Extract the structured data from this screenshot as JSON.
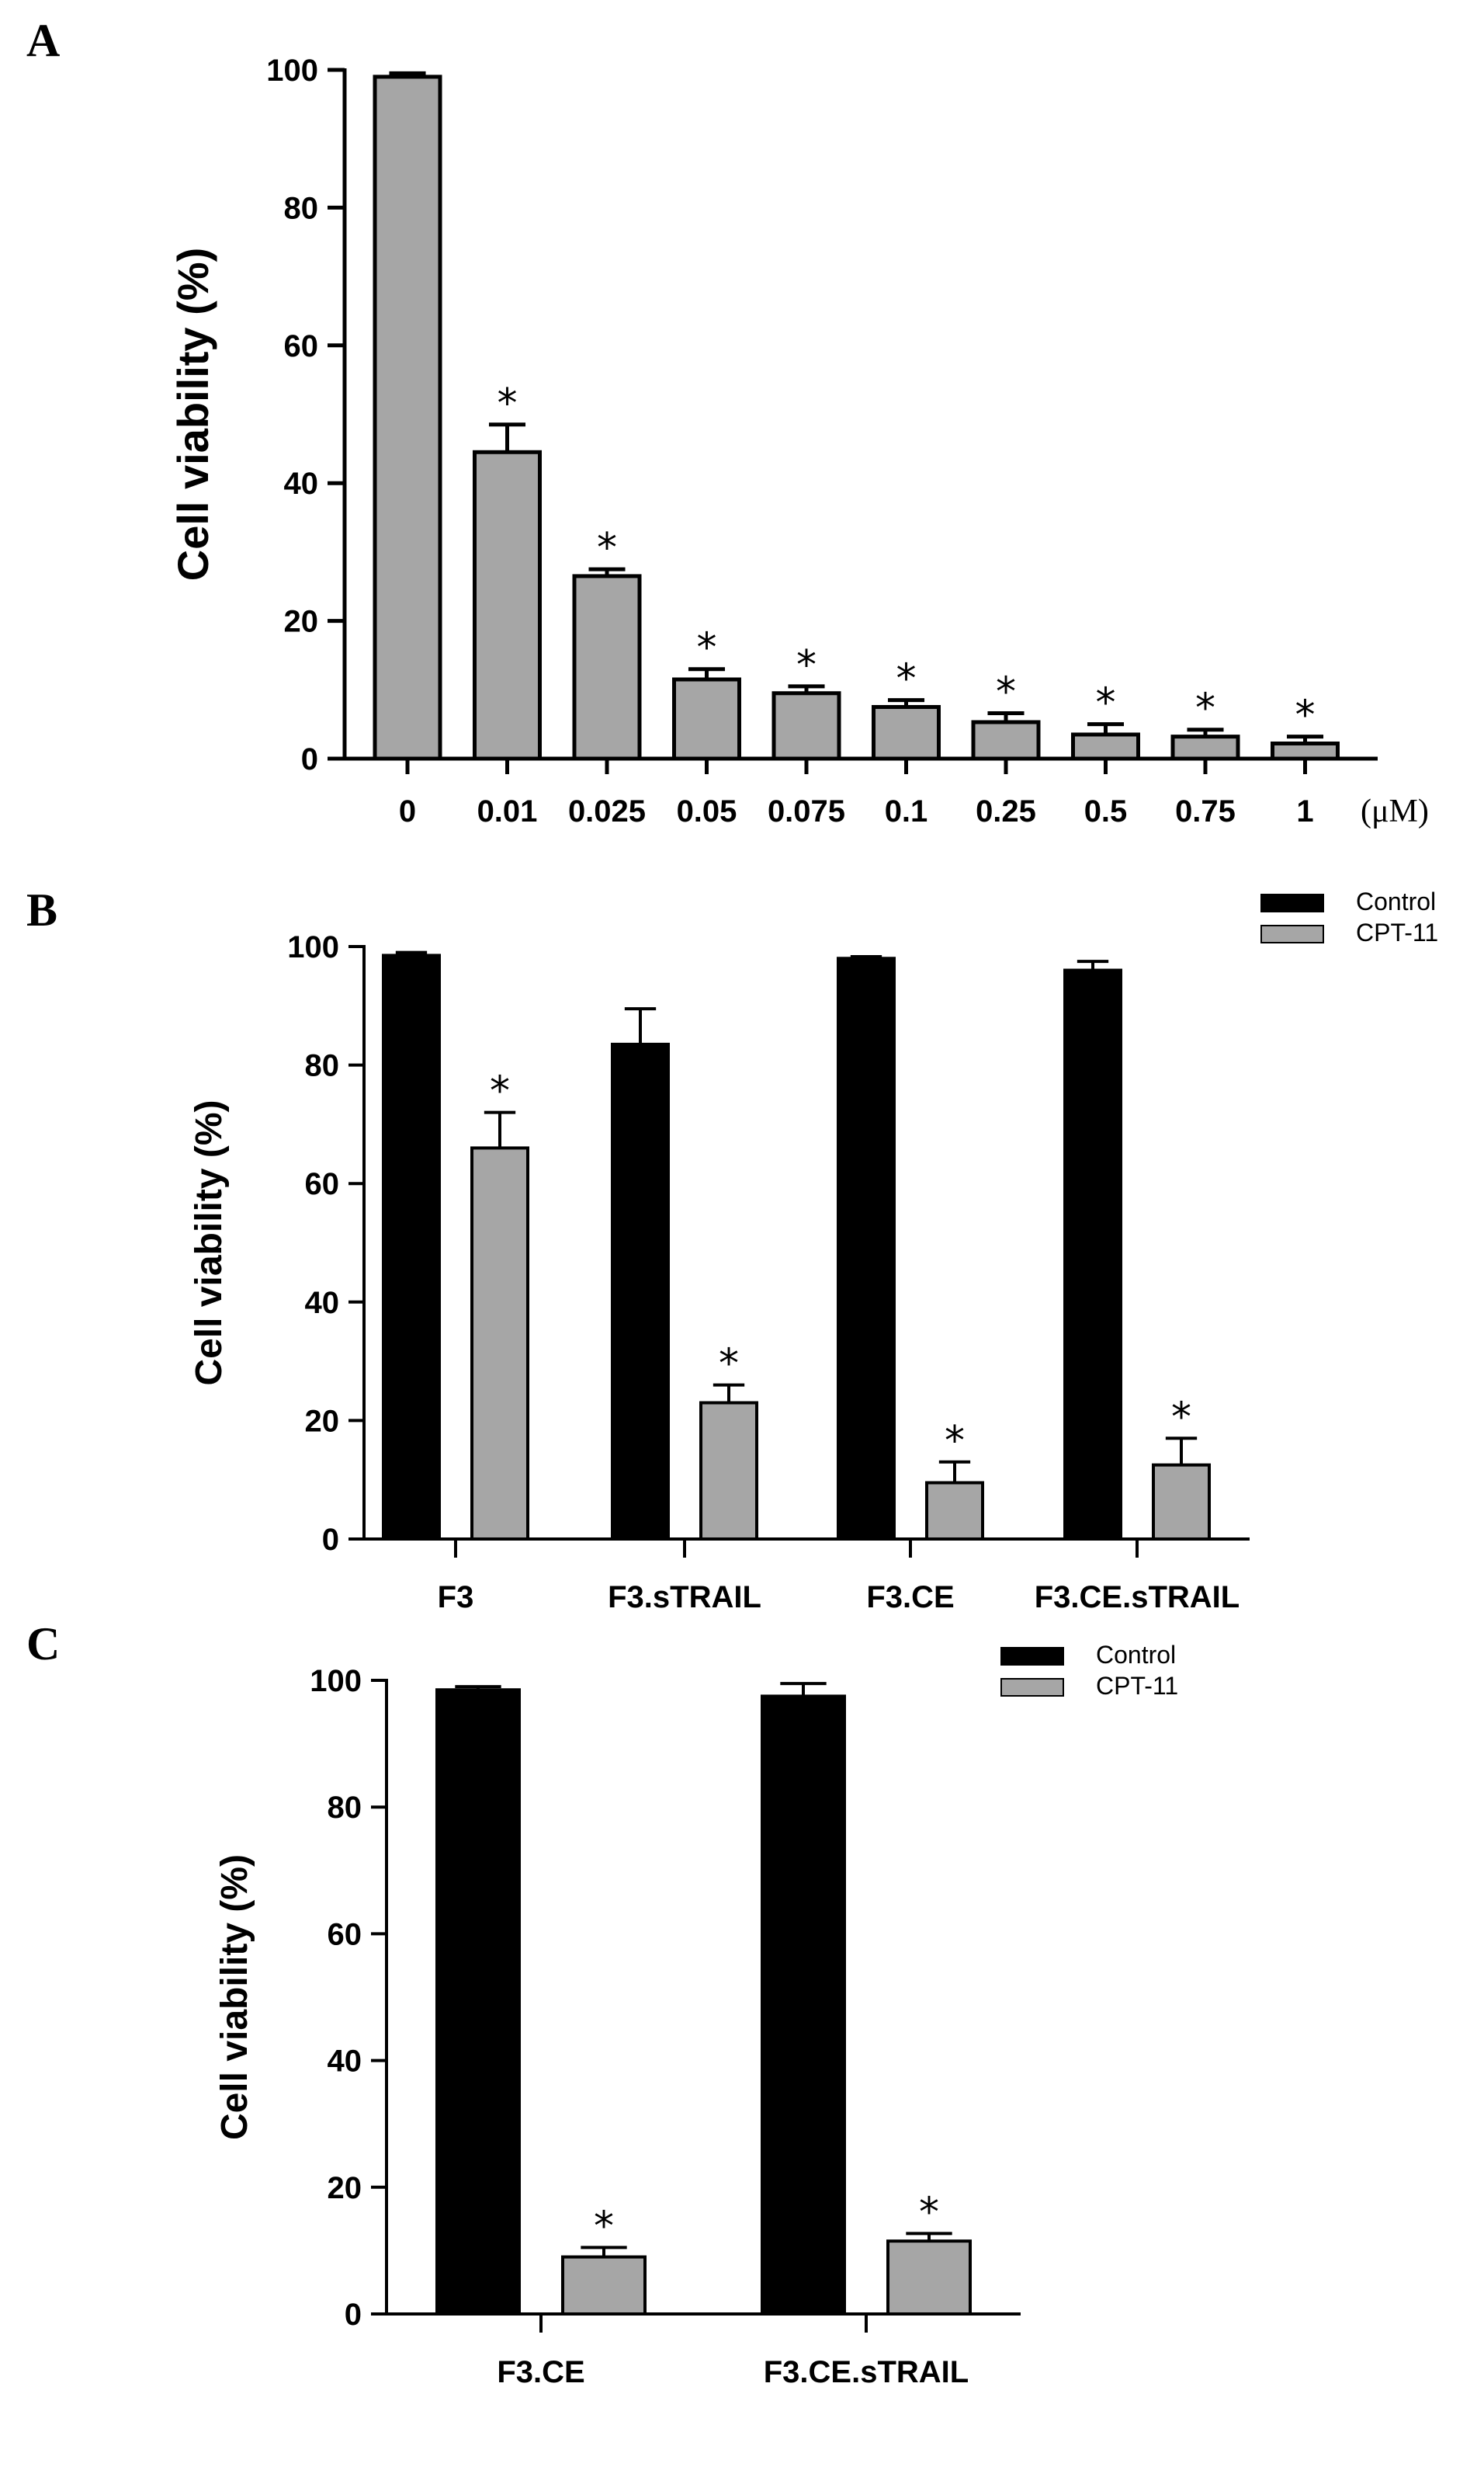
{
  "chart_data": [
    {
      "panel": "A",
      "type": "bar",
      "ylabel": "Cell viability (%)",
      "xunit": "(μM)",
      "ylim": [
        0,
        100
      ],
      "yticks": [
        0,
        20,
        40,
        60,
        80,
        100
      ],
      "categories": [
        "0",
        "0.01",
        "0.025",
        "0.05",
        "0.075",
        "0.1",
        "0.25",
        "0.5",
        "0.75",
        "1"
      ],
      "values": [
        99,
        44.5,
        26.5,
        11.5,
        9.5,
        7.5,
        5.3,
        3.5,
        3.2,
        2.2
      ],
      "errors": [
        0.5,
        4,
        1,
        1.5,
        1,
        1,
        1.3,
        1.5,
        1,
        1
      ],
      "significant": [
        false,
        true,
        true,
        true,
        true,
        true,
        true,
        true,
        true,
        true
      ],
      "marker": "*",
      "bar_color": "#a6a6a6"
    },
    {
      "panel": "B",
      "type": "bar",
      "ylabel": "Cell viability (%)",
      "ylim": [
        0,
        100
      ],
      "yticks": [
        0,
        20,
        40,
        60,
        80,
        100
      ],
      "categories": [
        "F3",
        "F3.sTRAIL",
        "F3.CE",
        "F3.CE.sTRAIL"
      ],
      "legend": [
        "Control",
        "CPT-11"
      ],
      "series": [
        {
          "name": "Control",
          "color": "#000000",
          "values": [
            98.5,
            83.5,
            98,
            96
          ],
          "errors": [
            0.5,
            6,
            0.3,
            1.5
          ],
          "significant": [
            false,
            false,
            false,
            false
          ]
        },
        {
          "name": "CPT-11",
          "color": "#a6a6a6",
          "values": [
            66,
            23,
            9.5,
            12.5
          ],
          "errors": [
            6,
            3,
            3.5,
            4.5
          ],
          "significant": [
            true,
            true,
            true,
            true
          ]
        }
      ],
      "marker": "*"
    },
    {
      "panel": "C",
      "type": "bar",
      "ylabel": "Cell viability (%)",
      "ylim": [
        0,
        100
      ],
      "yticks": [
        0,
        20,
        40,
        60,
        80,
        100
      ],
      "categories": [
        "F3.CE",
        "F3.CE.sTRAIL"
      ],
      "legend": [
        "Control",
        "CPT-11"
      ],
      "series": [
        {
          "name": "Control",
          "color": "#000000",
          "values": [
            98.5,
            97.5
          ],
          "errors": [
            0.5,
            2
          ],
          "significant": [
            false,
            false
          ]
        },
        {
          "name": "CPT-11",
          "color": "#a6a6a6",
          "values": [
            9,
            11.5
          ],
          "errors": [
            1.5,
            1.2
          ],
          "significant": [
            true,
            true
          ]
        }
      ],
      "marker": "*"
    }
  ]
}
